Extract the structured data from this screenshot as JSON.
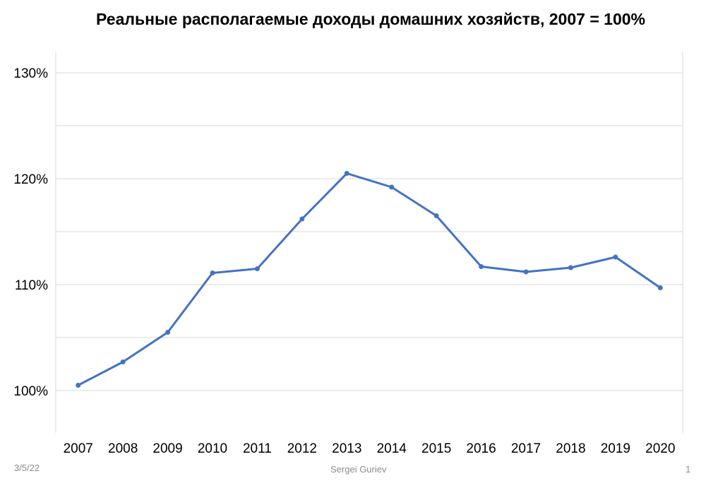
{
  "slide": {
    "title": "Реальные располагаемые доходы домашних хозяйств, 2007 = 100%",
    "date": "3/5/22",
    "author": "Sergei Guriev",
    "page_number": "1"
  },
  "chart_data": {
    "type": "line",
    "title": "Реальные располагаемые доходы домашних хозяйств, 2007 = 100%",
    "xlabel": "",
    "ylabel": "",
    "categories": [
      "2007",
      "2008",
      "2009",
      "2010",
      "2011",
      "2012",
      "2013",
      "2014",
      "2015",
      "2016",
      "2017",
      "2018",
      "2019",
      "2020"
    ],
    "series": [
      {
        "values": [
          100.5,
          102.7,
          105.5,
          111.1,
          111.5,
          116.2,
          120.5,
          119.2,
          116.5,
          111.7,
          111.2,
          111.6,
          112.6,
          109.7
        ]
      }
    ],
    "ylim": [
      96,
      132
    ],
    "yticks": [
      100,
      110,
      120,
      130
    ],
    "ytick_labels": [
      "100%",
      "110%",
      "120%",
      "130%"
    ],
    "grid": true,
    "line_color": "#4472c4",
    "grid_color": "#d9d9d9"
  }
}
